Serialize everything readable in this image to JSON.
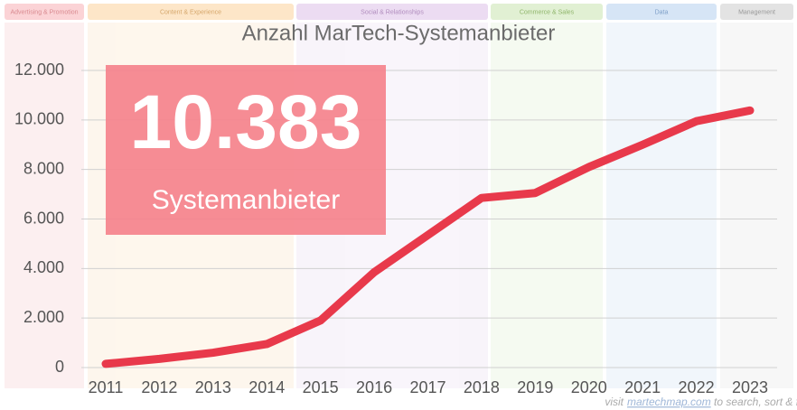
{
  "header_categories": [
    "Advertising & Promotion",
    "Content & Experience",
    "Social & Relationships",
    "Commerce & Sales",
    "Data",
    "Management"
  ],
  "footer": {
    "prefix": "visit",
    "link": "martechmap.com",
    "suffix": "to search, sort & filter"
  },
  "chart_data": {
    "type": "line",
    "title": "Anzahl MarTech-Systemanbieter",
    "annotation": {
      "value": "10.383",
      "label": "Systemanbieter"
    },
    "categories": [
      "2011",
      "2012",
      "2013",
      "2014",
      "2015",
      "2016",
      "2017",
      "2018",
      "2019",
      "2020",
      "2021",
      "2022",
      "2023"
    ],
    "values": [
      150,
      350,
      600,
      950,
      1900,
      3850,
      5350,
      6850,
      7050,
      8100,
      9000,
      9950,
      10383
    ],
    "color": "#e8394b",
    "ylim": [
      0,
      12000
    ],
    "yticks": [
      0,
      {
        "value": 2000,
        "label": "2.000"
      },
      {
        "value": 4000,
        "label": "4.000"
      },
      {
        "value": 6000,
        "label": "6.000"
      },
      {
        "value": 8000,
        "label": "8.000"
      },
      {
        "value": 10000,
        "label": "10.000"
      },
      {
        "value": 12000,
        "label": "12.000"
      }
    ],
    "grid": true
  }
}
